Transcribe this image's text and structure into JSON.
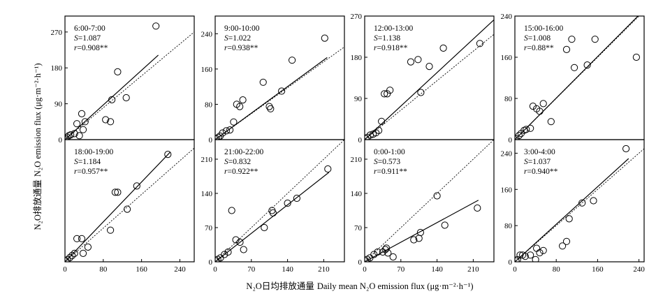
{
  "figure": {
    "xlabel_cn": "N₂O日均排放通量",
    "xlabel_en": "Daily mean N₂O emission flux (μg·m⁻²·h⁻¹)",
    "ylabel_cn": "N₂O排放通量",
    "ylabel_en": "N₂O emission flux (μg·m⁻²·h⁻¹)"
  },
  "chart_data": [
    {
      "type": "scatter",
      "time": "6:00-7:00",
      "s_label": "S",
      "s_value": "=1.087",
      "r_label": "r",
      "r_value": "=0.908**",
      "xlim": [
        0,
        270
      ],
      "ylim": [
        0,
        310
      ],
      "xticks": [],
      "yticks": [
        0,
        90,
        180,
        270
      ],
      "fit_slope": 1.087,
      "fit_x": [
        0,
        195
      ],
      "points": [
        [
          1,
          2
        ],
        [
          5,
          6
        ],
        [
          8,
          10
        ],
        [
          12,
          12
        ],
        [
          20,
          15
        ],
        [
          25,
          40
        ],
        [
          30,
          10
        ],
        [
          35,
          65
        ],
        [
          38,
          25
        ],
        [
          42,
          45
        ],
        [
          85,
          50
        ],
        [
          95,
          45
        ],
        [
          98,
          100
        ],
        [
          110,
          170
        ],
        [
          128,
          105
        ],
        [
          190,
          285
        ]
      ]
    },
    {
      "type": "scatter",
      "time": "9:00-10:00",
      "s_label": "S",
      "s_value": "=1.022",
      "r_label": "r",
      "r_value": "=0.938**",
      "xlim": [
        0,
        210
      ],
      "ylim": [
        0,
        280
      ],
      "xticks": [],
      "yticks": [
        0,
        80,
        160,
        240
      ],
      "fit_slope": 1.022,
      "fit_x": [
        0,
        182
      ],
      "points": [
        [
          2,
          2
        ],
        [
          5,
          5
        ],
        [
          8,
          8
        ],
        [
          12,
          15
        ],
        [
          18,
          20
        ],
        [
          24,
          22
        ],
        [
          30,
          40
        ],
        [
          35,
          80
        ],
        [
          40,
          75
        ],
        [
          45,
          90
        ],
        [
          78,
          130
        ],
        [
          88,
          75
        ],
        [
          90,
          70
        ],
        [
          108,
          110
        ],
        [
          125,
          180
        ],
        [
          178,
          230
        ]
      ]
    },
    {
      "type": "scatter",
      "time": "12:00-13:00",
      "s_label": "S",
      "s_value": "=1.138",
      "r_label": "r",
      "r_value": "=0.918**",
      "xlim": [
        0,
        230
      ],
      "ylim": [
        0,
        270
      ],
      "xticks": [],
      "yticks": [
        0,
        90,
        180,
        270
      ],
      "fit_slope": 1.138,
      "fit_x": [
        0,
        230
      ],
      "points": [
        [
          2,
          2
        ],
        [
          5,
          5
        ],
        [
          10,
          10
        ],
        [
          15,
          12
        ],
        [
          20,
          15
        ],
        [
          25,
          20
        ],
        [
          30,
          40
        ],
        [
          35,
          100
        ],
        [
          40,
          100
        ],
        [
          45,
          108
        ],
        [
          82,
          170
        ],
        [
          95,
          175
        ],
        [
          100,
          103
        ],
        [
          115,
          160
        ],
        [
          140,
          200
        ],
        [
          205,
          210
        ]
      ]
    },
    {
      "type": "scatter",
      "time": "15:00-16:00",
      "s_label": "S",
      "s_value": "=1.008",
      "r_label": "r",
      "r_value": "=0.88**",
      "xlim": [
        0,
        250
      ],
      "ylim": [
        0,
        240
      ],
      "xticks": [],
      "yticks": [
        0,
        80,
        160,
        240
      ],
      "fit_slope": 1.008,
      "fit_x": [
        0,
        238
      ],
      "points": [
        [
          2,
          2
        ],
        [
          8,
          8
        ],
        [
          12,
          12
        ],
        [
          18,
          18
        ],
        [
          22,
          20
        ],
        [
          30,
          22
        ],
        [
          35,
          65
        ],
        [
          42,
          60
        ],
        [
          48,
          55
        ],
        [
          55,
          70
        ],
        [
          70,
          35
        ],
        [
          100,
          175
        ],
        [
          110,
          195
        ],
        [
          115,
          140
        ],
        [
          140,
          145
        ],
        [
          155,
          195
        ],
        [
          235,
          160
        ]
      ]
    },
    {
      "type": "scatter",
      "time": "18:00-19:00",
      "s_label": "S",
      "s_value": "=1.184",
      "r_label": "r",
      "r_value": "=0.957**",
      "xlim": [
        0,
        270
      ],
      "ylim": [
        0,
        290
      ],
      "xticks": [
        0,
        80,
        160,
        240
      ],
      "yticks": [],
      "fit_slope": 1.184,
      "fit_x": [
        0,
        220
      ],
      "points": [
        [
          2,
          2
        ],
        [
          5,
          5
        ],
        [
          10,
          10
        ],
        [
          15,
          15
        ],
        [
          20,
          20
        ],
        [
          25,
          55
        ],
        [
          35,
          55
        ],
        [
          38,
          20
        ],
        [
          48,
          35
        ],
        [
          95,
          75
        ],
        [
          105,
          165
        ],
        [
          110,
          165
        ],
        [
          130,
          125
        ],
        [
          150,
          180
        ],
        [
          215,
          255
        ]
      ]
    },
    {
      "type": "scatter",
      "time": "21:00-22:00",
      "s_label": "S",
      "s_value": "=0.832",
      "r_label": "r",
      "r_value": "=0.922**",
      "xlim": [
        0,
        250
      ],
      "ylim": [
        0,
        250
      ],
      "xticks": [
        0,
        70,
        140,
        210
      ],
      "yticks": [
        0,
        70,
        140,
        210
      ],
      "fit_slope": 0.832,
      "fit_x": [
        0,
        220
      ],
      "points": [
        [
          2,
          2
        ],
        [
          5,
          5
        ],
        [
          10,
          8
        ],
        [
          18,
          15
        ],
        [
          25,
          20
        ],
        [
          32,
          105
        ],
        [
          40,
          45
        ],
        [
          48,
          40
        ],
        [
          55,
          25
        ],
        [
          95,
          70
        ],
        [
          110,
          105
        ],
        [
          112,
          100
        ],
        [
          140,
          120
        ],
        [
          158,
          130
        ],
        [
          218,
          190
        ]
      ]
    },
    {
      "type": "scatter",
      "time": "0:00-1:00",
      "s_label": "S",
      "s_value": "=0.573",
      "r_label": "r",
      "r_value": "=0.911**",
      "xlim": [
        0,
        250
      ],
      "ylim": [
        0,
        250
      ],
      "xticks": [
        0,
        70,
        140,
        210
      ],
      "yticks": [
        0,
        70,
        140,
        210
      ],
      "fit_slope": 0.573,
      "fit_x": [
        0,
        220
      ],
      "points": [
        [
          2,
          2
        ],
        [
          5,
          5
        ],
        [
          10,
          8
        ],
        [
          18,
          15
        ],
        [
          25,
          20
        ],
        [
          35,
          20
        ],
        [
          40,
          25
        ],
        [
          42,
          28
        ],
        [
          45,
          18
        ],
        [
          55,
          10
        ],
        [
          95,
          45
        ],
        [
          105,
          48
        ],
        [
          108,
          60
        ],
        [
          140,
          135
        ],
        [
          155,
          75
        ],
        [
          218,
          110
        ]
      ]
    },
    {
      "type": "scatter",
      "time": "3:00-4:00",
      "s_label": "S",
      "s_value": "=1.037",
      "r_label": "r",
      "r_value": "=0.940**",
      "xlim": [
        0,
        250
      ],
      "ylim": [
        0,
        270
      ],
      "xticks": [
        0,
        80,
        160,
        240
      ],
      "yticks": [
        0,
        80,
        160,
        240
      ],
      "fit_slope": 1.037,
      "fit_x": [
        0,
        220
      ],
      "points": [
        [
          2,
          2
        ],
        [
          5,
          5
        ],
        [
          10,
          15
        ],
        [
          15,
          15
        ],
        [
          20,
          12
        ],
        [
          30,
          15
        ],
        [
          40,
          5
        ],
        [
          42,
          30
        ],
        [
          48,
          20
        ],
        [
          55,
          25
        ],
        [
          92,
          35
        ],
        [
          100,
          45
        ],
        [
          105,
          95
        ],
        [
          130,
          130
        ],
        [
          152,
          135
        ],
        [
          215,
          250
        ]
      ]
    }
  ]
}
